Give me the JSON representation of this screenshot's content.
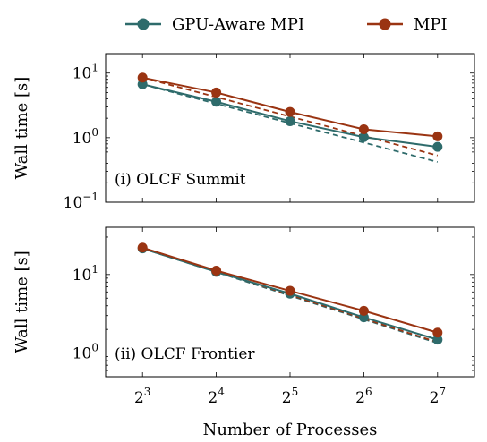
{
  "chart_data": [
    {
      "type": "line",
      "annotation": "(i) OLCF Summit",
      "ylabel": "Wall time [s]",
      "xlabel": "",
      "yscale": "log",
      "ylim": [
        0.1,
        20
      ],
      "yticks": [
        {
          "value": 0.1,
          "base": "10",
          "exp": "−1"
        },
        {
          "value": 1,
          "base": "10",
          "exp": "0"
        },
        {
          "value": 10,
          "base": "10",
          "exp": "1"
        }
      ],
      "x": [
        3,
        4,
        5,
        6,
        7
      ],
      "series": [
        {
          "name": "GPU-Aware MPI",
          "color": "#2e6b6b",
          "values": [
            6.7,
            3.6,
            1.8,
            1.02,
            0.72
          ],
          "ideal": [
            6.7,
            3.35,
            1.675,
            0.84,
            0.42
          ]
        },
        {
          "name": "MPI",
          "color": "#9a3412",
          "values": [
            8.5,
            5.0,
            2.5,
            1.35,
            1.05
          ],
          "ideal": [
            8.5,
            4.25,
            2.125,
            1.06,
            0.53
          ]
        }
      ]
    },
    {
      "type": "line",
      "annotation": "(ii) OLCF Frontier",
      "ylabel": "Wall time [s]",
      "xlabel": "Number of Processes",
      "yscale": "log",
      "ylim": [
        0.5,
        40
      ],
      "yticks": [
        {
          "value": 1,
          "base": "10",
          "exp": "0"
        },
        {
          "value": 10,
          "base": "10",
          "exp": "1"
        }
      ],
      "x": [
        3,
        4,
        5,
        6,
        7
      ],
      "xticks": [
        {
          "value": 3,
          "base": "2",
          "exp": "3"
        },
        {
          "value": 4,
          "base": "2",
          "exp": "4"
        },
        {
          "value": 5,
          "base": "2",
          "exp": "5"
        },
        {
          "value": 6,
          "base": "2",
          "exp": "6"
        },
        {
          "value": 7,
          "base": "2",
          "exp": "7"
        }
      ],
      "series": [
        {
          "name": "GPU-Aware MPI",
          "color": "#2e6b6b",
          "values": [
            21.5,
            10.8,
            5.7,
            2.85,
            1.48
          ],
          "ideal": [
            21.5,
            10.75,
            5.375,
            2.69,
            1.34
          ]
        },
        {
          "name": "MPI",
          "color": "#9a3412",
          "values": [
            22.0,
            11.2,
            6.2,
            3.45,
            1.82
          ],
          "ideal": [
            22.0,
            11.0,
            5.5,
            2.75,
            1.375
          ]
        }
      ]
    }
  ],
  "legend": [
    {
      "label": "GPU-Aware MPI",
      "color": "#2e6b6b"
    },
    {
      "label": "MPI",
      "color": "#9a3412"
    }
  ]
}
